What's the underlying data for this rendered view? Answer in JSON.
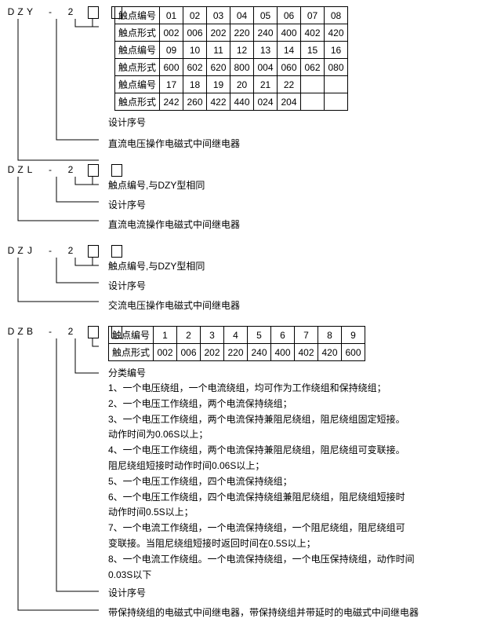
{
  "sections": {
    "dzy": {
      "code_chars": [
        "D",
        "Z",
        "Y",
        " ",
        "-",
        " ",
        "2",
        " ",
        "□",
        " ",
        "□"
      ],
      "table_row_headers": [
        "触点编号",
        "触点形式",
        "触点编号",
        "触点形式",
        "触点编号",
        "触点形式"
      ],
      "table_rows": [
        [
          "01",
          "02",
          "03",
          "04",
          "05",
          "06",
          "07",
          "08"
        ],
        [
          "002",
          "006",
          "202",
          "220",
          "240",
          "400",
          "402",
          "420"
        ],
        [
          "09",
          "10",
          "11",
          "12",
          "13",
          "14",
          "15",
          "16"
        ],
        [
          "600",
          "602",
          "620",
          "800",
          "004",
          "060",
          "062",
          "080"
        ],
        [
          "17",
          "18",
          "19",
          "20",
          "21",
          "22",
          "",
          ""
        ],
        [
          "242",
          "260",
          "422",
          "440",
          "024",
          "204",
          "",
          ""
        ]
      ],
      "labels": [
        "设计序号",
        "直流电压操作电磁式中间继电器"
      ]
    },
    "dzl": {
      "code_chars": [
        "D",
        "Z",
        "L",
        " ",
        "-",
        " ",
        "2",
        " ",
        "□",
        " ",
        "□"
      ],
      "labels": [
        "触点编号,与DZY型相同",
        "设计序号",
        "直流电流操作电磁式中间继电器"
      ]
    },
    "dzj": {
      "code_chars": [
        "D",
        "Z",
        "J",
        " ",
        "-",
        " ",
        "2",
        " ",
        "□",
        " ",
        "□"
      ],
      "labels": [
        "触点编号,与DZY型相同",
        "设计序号",
        "交流电压操作电磁式中间继电器"
      ]
    },
    "dzb": {
      "code_chars": [
        "D",
        "Z",
        "B",
        " ",
        "-",
        " ",
        "2",
        " ",
        "□",
        " ",
        "□"
      ],
      "table_row_headers": [
        "触点编号",
        "触点形式"
      ],
      "table_rows": [
        [
          "1",
          "2",
          "3",
          "4",
          "5",
          "6",
          "7",
          "8",
          "9"
        ],
        [
          "002",
          "006",
          "202",
          "220",
          "240",
          "400",
          "402",
          "420",
          "600"
        ]
      ],
      "class_label": "分类编号",
      "items": [
        "1、一个电压绕组，一个电流绕组，均可作为工作绕组和保持绕组；",
        "2、一个电压工作绕组，两个电流保持绕组；",
        "3、一个电压工作绕组，两个电流保持兼阻尼绕组，阻尼绕组固定短接。",
        "动作时间为0.06S以上；",
        "4、一个电压工作绕组，两个电流保持兼阻尼绕组，阻尼绕组可变联接。",
        "阻尼绕组短接时动作时间0.06S以上；",
        "5、一个电压工作绕组，四个电流保持绕组；",
        "6、一个电压工作绕组，四个电流保持绕组兼阻尼绕组，阻尼绕组短接时",
        "动作时间0.5S以上；",
        "7、一个电流工作绕组，一个电流保持绕组，一个阻尼绕组，阻尼绕组可",
        "变联接。当阻尼绕组短接时返回时间在0.5S以上；",
        "8、一个电流工作绕组。一个电流保持绕组，一个电压保持绕组，动作时间",
        "0.03S以下"
      ],
      "labels": [
        "设计序号",
        "带保持绕组的电磁式中间继电器，带保持绕组并带延时的电磁式中间继电器"
      ]
    }
  }
}
